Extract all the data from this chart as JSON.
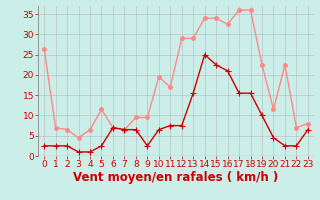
{
  "x": [
    0,
    1,
    2,
    3,
    4,
    5,
    6,
    7,
    8,
    9,
    10,
    11,
    12,
    13,
    14,
    15,
    16,
    17,
    18,
    19,
    20,
    21,
    22,
    23
  ],
  "wind_avg": [
    2.5,
    2.5,
    2.5,
    1,
    1,
    2.5,
    7,
    6.5,
    6.5,
    2.5,
    6.5,
    7.5,
    7.5,
    15.5,
    25,
    22.5,
    21,
    15.5,
    15.5,
    10,
    4.5,
    2.5,
    2.5,
    6.5
  ],
  "wind_gust": [
    26.5,
    7,
    6.5,
    4.5,
    6.5,
    11.5,
    7,
    6.5,
    9.5,
    9.5,
    19.5,
    17,
    29,
    29,
    34,
    34,
    32.5,
    36,
    36,
    22.5,
    11.5,
    22.5,
    7,
    8
  ],
  "avg_color": "#cc0000",
  "gust_color": "#ff8888",
  "bg_color": "#cceee8",
  "grid_color": "#aaaaaa",
  "xlabel": "Vent moyen/en rafales ( km/h )",
  "xlim": [
    -0.5,
    23.5
  ],
  "ylim": [
    0,
    37
  ],
  "yticks": [
    0,
    5,
    10,
    15,
    20,
    25,
    30,
    35
  ],
  "xticks": [
    0,
    1,
    2,
    3,
    4,
    5,
    6,
    7,
    8,
    9,
    10,
    11,
    12,
    13,
    14,
    15,
    16,
    17,
    18,
    19,
    20,
    21,
    22,
    23
  ],
  "tick_color": "#cc0000",
  "tick_fontsize": 6.5,
  "xlabel_fontsize": 8.5,
  "marker_size": 2.5,
  "line_width": 1.0
}
